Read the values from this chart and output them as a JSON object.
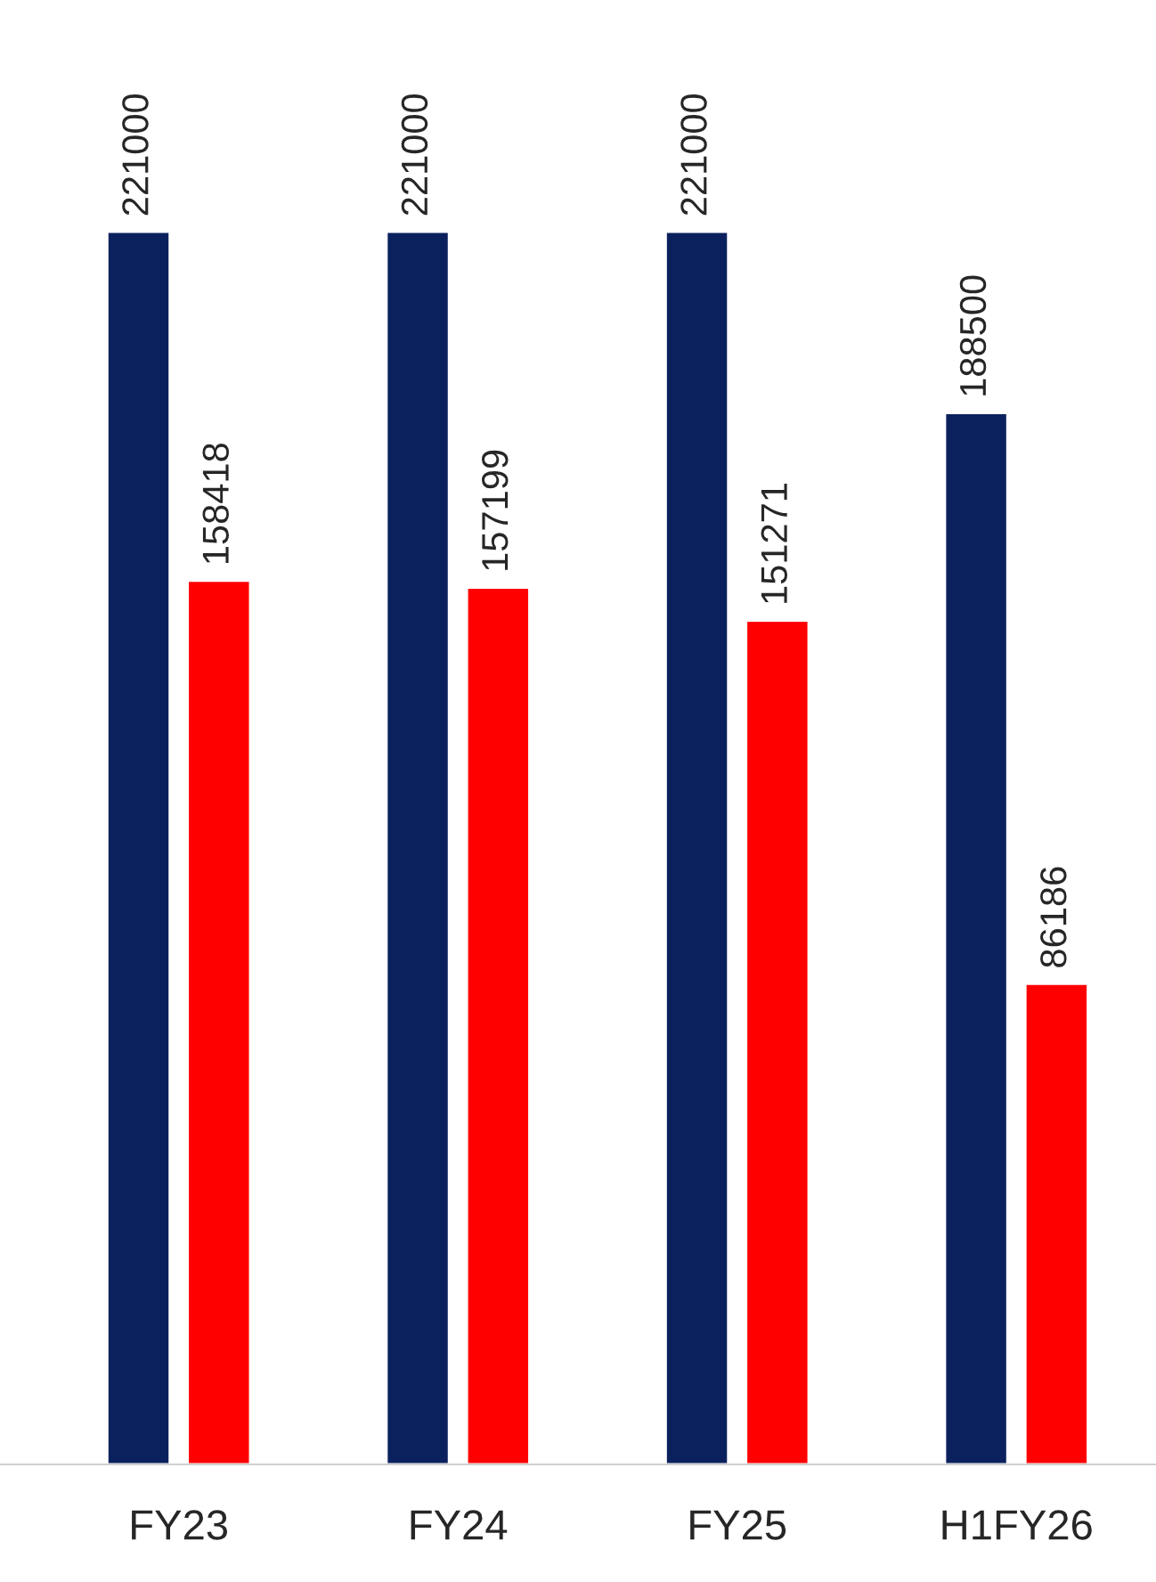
{
  "chart_data": {
    "type": "bar",
    "categories": [
      "FY23",
      "FY24",
      "FY25",
      "H1FY26"
    ],
    "series": [
      {
        "color": "#0b215e",
        "values": [
          221000,
          221000,
          221000,
          188500
        ]
      },
      {
        "color": "#ff0000",
        "values": [
          158418,
          157199,
          151271,
          86186
        ]
      }
    ],
    "data_labels": true,
    "grid": false,
    "legend": false
  }
}
